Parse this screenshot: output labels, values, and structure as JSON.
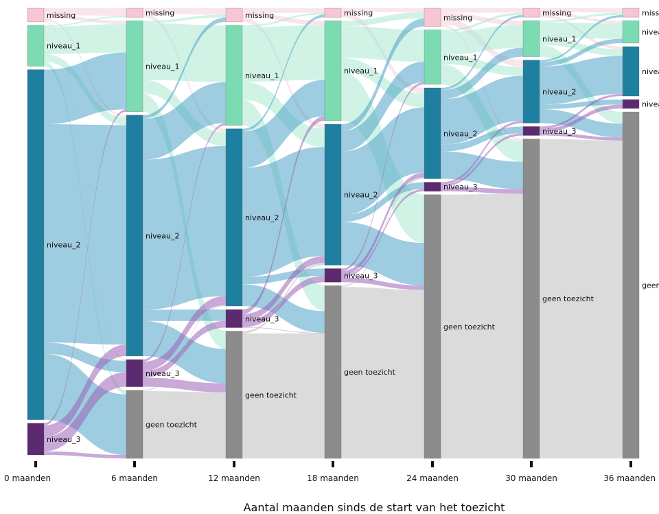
{
  "chart_data": {
    "type": "sankey",
    "xlabel": "Aantal maanden sinds de start van het toezicht",
    "x_ticks": [
      "0 maanden",
      "6 maanden",
      "12 maanden",
      "18 maanden",
      "24 maanden",
      "30 maanden",
      "36 maanden"
    ],
    "categories": [
      "missing",
      "niveau_1",
      "niveau_2",
      "niveau_3",
      "geen toezicht"
    ],
    "colors": {
      "missing": "#f7c6d3",
      "niveau_1": "#7ddbb3",
      "niveau_2": "#1f7fa0",
      "niveau_3": "#5c2a6e",
      "geen toezicht": "#8c8c8c"
    },
    "link_colors": {
      "missing": "#f4cfdc",
      "niveau_1": "#a9ead1",
      "niveau_2": "#4fa2c6",
      "niveau_3": "#9a63b8",
      "geen toezicht": "#bdbdbd"
    },
    "node_share_percent": [
      {
        "missing": 3,
        "niveau_1": 9,
        "niveau_2": 77,
        "niveau_3": 7,
        "geen toezicht": 0
      },
      {
        "missing": 2,
        "niveau_1": 20,
        "niveau_2": 53,
        "niveau_3": 6,
        "geen toezicht": 15
      },
      {
        "missing": 3,
        "niveau_1": 22,
        "niveau_2": 39,
        "niveau_3": 4,
        "geen toezicht": 28
      },
      {
        "missing": 2,
        "niveau_1": 22,
        "niveau_2": 31,
        "niveau_3": 3,
        "geen toezicht": 38
      },
      {
        "missing": 4,
        "niveau_1": 12,
        "niveau_2": 20,
        "niveau_3": 2,
        "geen toezicht": 58
      },
      {
        "missing": 2,
        "niveau_1": 8,
        "niveau_2": 14,
        "niveau_3": 2,
        "geen toezicht": 71
      },
      {
        "missing": 2,
        "niveau_1": 5,
        "niveau_2": 11,
        "niveau_3": 2,
        "geen toezicht": 77
      }
    ],
    "flows": [
      [
        {
          "from": "missing",
          "to": "missing",
          "value": 1.5
        },
        {
          "from": "missing",
          "to": "niveau_1",
          "value": 0.7
        },
        {
          "from": "missing",
          "to": "niveau_2",
          "value": 0.5
        },
        {
          "from": "missing",
          "to": "niveau_3",
          "value": 0.3
        },
        {
          "from": "niveau_1",
          "to": "missing",
          "value": 0.3
        },
        {
          "from": "niveau_1",
          "to": "niveau_1",
          "value": 6
        },
        {
          "from": "niveau_1",
          "to": "niveau_2",
          "value": 1.7
        },
        {
          "from": "niveau_1",
          "to": "geen toezicht",
          "value": 1
        },
        {
          "from": "niveau_2",
          "to": "niveau_1",
          "value": 12
        },
        {
          "from": "niveau_2",
          "to": "niveau_2",
          "value": 48
        },
        {
          "from": "niveau_2",
          "to": "niveau_3",
          "value": 2.5
        },
        {
          "from": "niveau_2",
          "to": "geen toezicht",
          "value": 14.5
        },
        {
          "from": "niveau_3",
          "to": "niveau_1",
          "value": 0.5
        },
        {
          "from": "niveau_3",
          "to": "niveau_2",
          "value": 2.5
        },
        {
          "from": "niveau_3",
          "to": "niveau_3",
          "value": 3.2
        },
        {
          "from": "niveau_3",
          "to": "geen toezicht",
          "value": 0.8
        }
      ],
      [
        {
          "from": "missing",
          "to": "missing",
          "value": 1.2
        },
        {
          "from": "missing",
          "to": "niveau_2",
          "value": 0.8
        },
        {
          "from": "niveau_1",
          "to": "missing",
          "value": 0.5
        },
        {
          "from": "niveau_1",
          "to": "niveau_1",
          "value": 12.5
        },
        {
          "from": "niveau_1",
          "to": "niveau_2",
          "value": 3
        },
        {
          "from": "niveau_1",
          "to": "geen toezicht",
          "value": 4
        },
        {
          "from": "niveau_2",
          "to": "missing",
          "value": 0.8
        },
        {
          "from": "niveau_2",
          "to": "niveau_1",
          "value": 9
        },
        {
          "from": "niveau_2",
          "to": "niveau_2",
          "value": 33
        },
        {
          "from": "niveau_2",
          "to": "niveau_3",
          "value": 2.5
        },
        {
          "from": "niveau_2",
          "to": "geen toezicht",
          "value": 7.7
        },
        {
          "from": "niveau_3",
          "to": "niveau_1",
          "value": 0.5
        },
        {
          "from": "niveau_3",
          "to": "niveau_2",
          "value": 2
        },
        {
          "from": "niveau_3",
          "to": "niveau_3",
          "value": 1.5
        },
        {
          "from": "niveau_3",
          "to": "geen toezicht",
          "value": 2
        },
        {
          "from": "geen toezicht",
          "to": "niveau_2",
          "value": 0.2
        },
        {
          "from": "geen toezicht",
          "to": "geen toezicht",
          "value": 14.8
        }
      ],
      [
        {
          "from": "missing",
          "to": "missing",
          "value": 1
        },
        {
          "from": "missing",
          "to": "niveau_1",
          "value": 1
        },
        {
          "from": "missing",
          "to": "niveau_2",
          "value": 1
        },
        {
          "from": "niveau_1",
          "to": "missing",
          "value": 0.4
        },
        {
          "from": "niveau_1",
          "to": "niveau_1",
          "value": 12
        },
        {
          "from": "niveau_1",
          "to": "niveau_2",
          "value": 4
        },
        {
          "from": "niveau_1",
          "to": "geen toezicht",
          "value": 5.6
        },
        {
          "from": "niveau_2",
          "to": "missing",
          "value": 0.6
        },
        {
          "from": "niveau_2",
          "to": "niveau_1",
          "value": 8
        },
        {
          "from": "niveau_2",
          "to": "niveau_2",
          "value": 24
        },
        {
          "from": "niveau_2",
          "to": "niveau_3",
          "value": 1.6
        },
        {
          "from": "niveau_2",
          "to": "geen toezicht",
          "value": 4.8
        },
        {
          "from": "niveau_3",
          "to": "niveau_1",
          "value": 1
        },
        {
          "from": "niveau_3",
          "to": "niveau_2",
          "value": 1.5
        },
        {
          "from": "niveau_3",
          "to": "niveau_3",
          "value": 1.4
        },
        {
          "from": "niveau_3",
          "to": "geen toezicht",
          "value": 0.1
        },
        {
          "from": "geen toezicht",
          "to": "geen toezicht",
          "value": 27.5
        },
        {
          "from": "geen toezicht",
          "to": "niveau_2",
          "value": 0.5
        }
      ],
      [
        {
          "from": "missing",
          "to": "missing",
          "value": 0.8
        },
        {
          "from": "missing",
          "to": "niveau_2",
          "value": 1.2
        },
        {
          "from": "niveau_1",
          "to": "missing",
          "value": 1.2
        },
        {
          "from": "niveau_1",
          "to": "niveau_1",
          "value": 7
        },
        {
          "from": "niveau_1",
          "to": "niveau_2",
          "value": 3
        },
        {
          "from": "niveau_1",
          "to": "geen toezicht",
          "value": 10.8
        },
        {
          "from": "niveau_2",
          "to": "missing",
          "value": 1.5
        },
        {
          "from": "niveau_2",
          "to": "niveau_1",
          "value": 4.5
        },
        {
          "from": "niveau_2",
          "to": "niveau_2",
          "value": 14
        },
        {
          "from": "niveau_2",
          "to": "niveau_3",
          "value": 1.5
        },
        {
          "from": "niveau_2",
          "to": "geen toezicht",
          "value": 9.5
        },
        {
          "from": "niveau_3",
          "to": "niveau_1",
          "value": 0.5
        },
        {
          "from": "niveau_3",
          "to": "niveau_2",
          "value": 1
        },
        {
          "from": "niveau_3",
          "to": "niveau_3",
          "value": 0.5
        },
        {
          "from": "niveau_3",
          "to": "geen toezicht",
          "value": 1
        },
        {
          "from": "geen toezicht",
          "to": "geen toezicht",
          "value": 37.7
        },
        {
          "from": "geen toezicht",
          "to": "niveau_2",
          "value": 0.3
        }
      ],
      [
        {
          "from": "missing",
          "to": "missing",
          "value": 1
        },
        {
          "from": "missing",
          "to": "niveau_1",
          "value": 1
        },
        {
          "from": "missing",
          "to": "niveau_2",
          "value": 1.5
        },
        {
          "from": "missing",
          "to": "geen toezicht",
          "value": 0.5
        },
        {
          "from": "niveau_1",
          "to": "missing",
          "value": 0.5
        },
        {
          "from": "niveau_1",
          "to": "niveau_1",
          "value": 5
        },
        {
          "from": "niveau_1",
          "to": "niveau_2",
          "value": 2
        },
        {
          "from": "niveau_1",
          "to": "geen toezicht",
          "value": 4.5
        },
        {
          "from": "niveau_2",
          "to": "missing",
          "value": 0.5
        },
        {
          "from": "niveau_2",
          "to": "niveau_1",
          "value": 2
        },
        {
          "from": "niveau_2",
          "to": "niveau_2",
          "value": 10
        },
        {
          "from": "niveau_2",
          "to": "niveau_3",
          "value": 1.5
        },
        {
          "from": "niveau_2",
          "to": "geen toezicht",
          "value": 6
        },
        {
          "from": "niveau_3",
          "to": "niveau_2",
          "value": 0.5
        },
        {
          "from": "niveau_3",
          "to": "niveau_3",
          "value": 0.5
        },
        {
          "from": "niveau_3",
          "to": "geen toezicht",
          "value": 1
        },
        {
          "from": "geen toezicht",
          "to": "geen toezicht",
          "value": 58
        }
      ],
      [
        {
          "from": "missing",
          "to": "missing",
          "value": 0.8
        },
        {
          "from": "missing",
          "to": "niveau_1",
          "value": 0.6
        },
        {
          "from": "missing",
          "to": "niveau_2",
          "value": 0.6
        },
        {
          "from": "niveau_1",
          "to": "missing",
          "value": 0.4
        },
        {
          "from": "niveau_1",
          "to": "niveau_1",
          "value": 3.5
        },
        {
          "from": "niveau_1",
          "to": "niveau_2",
          "value": 1.5
        },
        {
          "from": "niveau_1",
          "to": "geen toezicht",
          "value": 2.6
        },
        {
          "from": "niveau_2",
          "to": "missing",
          "value": 0.4
        },
        {
          "from": "niveau_2",
          "to": "niveau_1",
          "value": 1
        },
        {
          "from": "niveau_2",
          "to": "niveau_2",
          "value": 8.5
        },
        {
          "from": "niveau_2",
          "to": "niveau_3",
          "value": 1
        },
        {
          "from": "niveau_2",
          "to": "geen toezicht",
          "value": 3.1
        },
        {
          "from": "niveau_3",
          "to": "niveau_2",
          "value": 0.5
        },
        {
          "from": "niveau_3",
          "to": "niveau_3",
          "value": 0.8
        },
        {
          "from": "niveau_3",
          "to": "geen toezicht",
          "value": 0.7
        },
        {
          "from": "geen toezicht",
          "to": "geen toezicht",
          "value": 71
        }
      ]
    ],
    "node_label_text": {
      "missing": "missing",
      "niveau_1": "niveau_1",
      "niveau_2": "niveau_2",
      "niveau_3": "niveau_3",
      "geen toezicht": "geen toezicht"
    }
  }
}
